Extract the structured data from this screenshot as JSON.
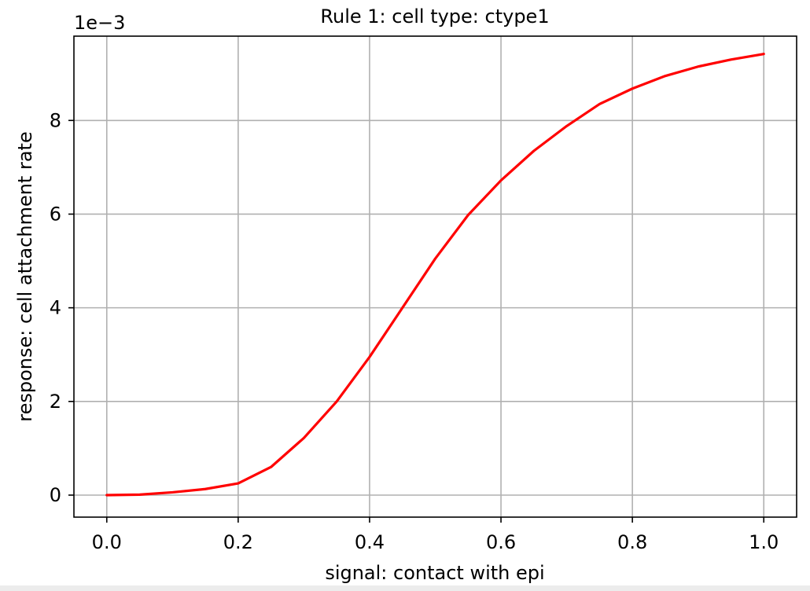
{
  "chart_data": {
    "type": "line",
    "title": "Rule 1: cell type: ctype1",
    "xlabel": "signal: contact with epi",
    "ylabel": "response: cell attachment rate",
    "y_offset_label": "1e−3",
    "xlim": [
      -0.05,
      1.05
    ],
    "ylim": [
      -0.47,
      9.8
    ],
    "x_ticks": [
      0.0,
      0.2,
      0.4,
      0.6,
      0.8,
      1.0
    ],
    "x_tick_labels": [
      "0.0",
      "0.2",
      "0.4",
      "0.6",
      "0.8",
      "1.0"
    ],
    "y_ticks": [
      0,
      2,
      4,
      6,
      8
    ],
    "y_tick_labels": [
      "0",
      "2",
      "4",
      "6",
      "8"
    ],
    "grid": true,
    "series": [
      {
        "color": "#ff0000",
        "x": [
          0.0,
          0.05,
          0.1,
          0.15,
          0.2,
          0.25,
          0.3,
          0.35,
          0.4,
          0.45,
          0.5,
          0.55,
          0.6,
          0.65,
          0.7,
          0.75,
          0.8,
          0.85,
          0.9,
          0.95,
          1.0
        ],
        "y": [
          0.0,
          0.01,
          0.06,
          0.13,
          0.25,
          0.6,
          1.22,
          2.0,
          2.95,
          4.0,
          5.05,
          5.98,
          6.72,
          7.35,
          7.88,
          8.35,
          8.68,
          8.95,
          9.15,
          9.3,
          9.42
        ]
      }
    ]
  }
}
